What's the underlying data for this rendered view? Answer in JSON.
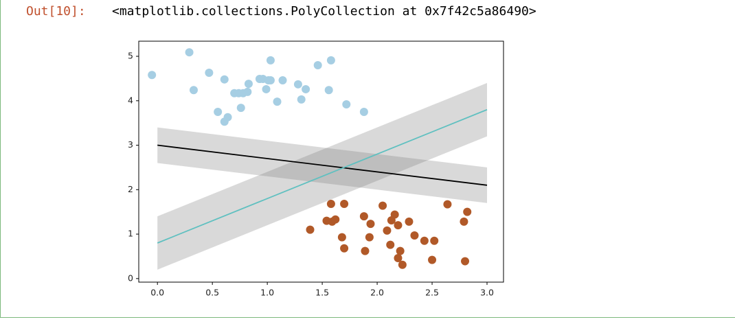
{
  "prompt": "Out[10]:",
  "output_text": "<matplotlib.collections.PolyCollection at 0x7f42c5a86490>",
  "chart_data": {
    "type": "scatter",
    "xlim": [
      -0.17,
      3.15
    ],
    "ylim": [
      -0.08,
      5.34
    ],
    "xticks": [
      {
        "value": 0,
        "label": "0.0"
      },
      {
        "value": 0.5,
        "label": "0.5"
      },
      {
        "value": 1,
        "label": "1.0"
      },
      {
        "value": 1.5,
        "label": "1.5"
      },
      {
        "value": 2,
        "label": "2.0"
      },
      {
        "value": 2.5,
        "label": "2.5"
      },
      {
        "value": 3,
        "label": "3.0"
      }
    ],
    "yticks": [
      0,
      1,
      2,
      3,
      4,
      5
    ],
    "series": [
      {
        "color": "#a6cee3",
        "x": [
          -0.05,
          0.29,
          0.33,
          0.47,
          0.55,
          0.61,
          0.61,
          0.64,
          0.7,
          0.74,
          0.76,
          0.78,
          0.82,
          0.83,
          0.93,
          0.96,
          0.99,
          1.01,
          1.03,
          1.03,
          1.09,
          1.14,
          1.28,
          1.31,
          1.35,
          1.46,
          1.56,
          1.58,
          1.72,
          1.88
        ],
        "y": [
          4.58,
          5.09,
          4.24,
          4.63,
          3.75,
          4.48,
          3.53,
          3.63,
          4.17,
          4.17,
          3.84,
          4.17,
          4.2,
          4.38,
          4.49,
          4.49,
          4.26,
          4.46,
          4.91,
          4.46,
          3.98,
          4.46,
          4.37,
          4.03,
          4.26,
          4.8,
          4.24,
          4.91,
          3.92,
          3.75
        ]
      },
      {
        "color": "#b15928",
        "x": [
          1.39,
          1.54,
          1.58,
          1.59,
          1.62,
          1.68,
          1.7,
          1.7,
          1.88,
          1.89,
          1.93,
          1.94,
          2.05,
          2.09,
          2.12,
          2.13,
          2.16,
          2.19,
          2.19,
          2.21,
          2.23,
          2.29,
          2.34,
          2.43,
          2.5,
          2.52,
          2.64,
          2.79,
          2.8,
          2.82
        ],
        "y": [
          1.1,
          1.3,
          1.68,
          1.28,
          1.33,
          0.93,
          1.68,
          0.68,
          1.4,
          0.62,
          0.93,
          1.23,
          1.64,
          1.08,
          0.76,
          1.31,
          1.44,
          1.2,
          0.46,
          0.62,
          0.31,
          1.28,
          0.97,
          0.85,
          0.42,
          0.85,
          1.67,
          1.28,
          0.39,
          1.5
        ]
      }
    ],
    "lines": [
      {
        "color": "#000000",
        "x": [
          0,
          3
        ],
        "y": [
          3.0,
          2.1
        ],
        "band_lower": [
          2.6,
          1.7
        ],
        "band_upper": [
          3.4,
          2.5
        ],
        "band_color": "#808080",
        "band_alpha": 0.3
      },
      {
        "color": "#5fc0c0",
        "x": [
          0,
          3
        ],
        "y": [
          0.8,
          3.8
        ],
        "band_lower": [
          0.2,
          3.2
        ],
        "band_upper": [
          1.4,
          4.4
        ],
        "band_color": "#808080",
        "band_alpha": 0.3
      }
    ]
  }
}
